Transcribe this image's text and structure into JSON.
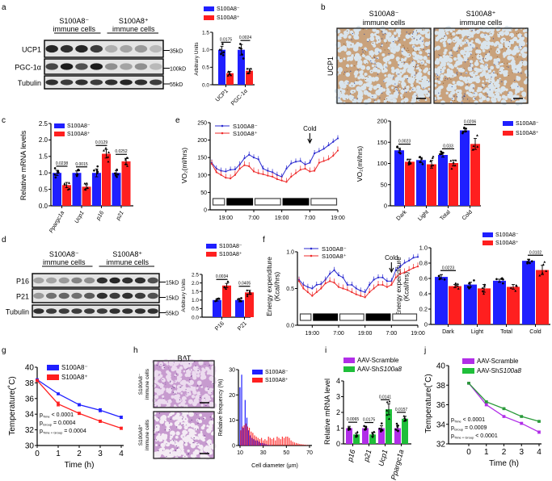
{
  "panel_letters": [
    "a",
    "b",
    "c",
    "d",
    "e",
    "f",
    "g",
    "h",
    "i",
    "j"
  ],
  "legend": {
    "neg": "S100A8⁻",
    "pos": "S100A8⁺",
    "scramble": "AAV-Scramble",
    "sh_prefix": "AAV-Sh",
    "sh_gene": "S100a8"
  },
  "colors": {
    "neg": "#1f1fff",
    "pos": "#ff1f1f",
    "scramble": "#b12ee8",
    "sh": "#1fbf3a",
    "neg_line": "#2a2ad0",
    "pos_line": "#ee2a2a",
    "scramble_line": "#b12ee8",
    "sh_line": "#2a9a3a"
  },
  "blots": {
    "a": {
      "header": [
        "S100A8⁻",
        "immune cells",
        "S100A8⁺",
        "immune cells"
      ],
      "lanes_per_group": 4,
      "rows": [
        {
          "label": "UCP1",
          "kd": "35kD"
        },
        {
          "label": "PGC-1α",
          "kd": "100kD"
        },
        {
          "label": "Tubulin",
          "kd": "55kD"
        }
      ]
    },
    "d": {
      "header": [
        "S100A8⁻",
        "immune cells",
        "S100A8⁺",
        "immune cells"
      ],
      "lanes_per_group": 5,
      "rows": [
        {
          "label": "P16",
          "kd": "15kD"
        },
        {
          "label": "P21",
          "kd": "15kD"
        },
        {
          "label": "Tubulin",
          "kd": "55kD"
        }
      ]
    }
  },
  "histology": {
    "b": {
      "titles": [
        [
          "S100A8⁻",
          "immune cells"
        ],
        [
          "S100A8⁺",
          "immune cells"
        ]
      ],
      "row_label": "UCP1"
    },
    "h": {
      "title": "BAT",
      "row_labels": [
        [
          "S100A8⁻",
          "immune cells"
        ],
        [
          "S100A8⁺",
          "immune cells"
        ]
      ]
    }
  },
  "chart_data": [
    {
      "id": "a_bar",
      "type": "bar",
      "title": "",
      "ylabel": "Arbitrary Units",
      "categories": [
        "UCP1",
        "PGC-1α"
      ],
      "ylim": [
        0,
        1.5
      ],
      "yticks": [
        "0.0",
        "0.5",
        "1.0",
        "1.5"
      ],
      "series": [
        {
          "name": "S100A8⁻",
          "values": [
            1.0,
            1.0
          ],
          "sem": [
            0.1,
            0.15
          ]
        },
        {
          "name": "S100A8⁺",
          "values": [
            0.33,
            0.4
          ],
          "sem": [
            0.05,
            0.06
          ]
        }
      ],
      "pvalues": [
        "0.0175",
        "0.0024"
      ]
    },
    {
      "id": "c_bar",
      "type": "bar",
      "ylabel": "Relative mRNA levels",
      "categories": [
        "Ppargc1a",
        "Ucp1",
        "p16",
        "p21"
      ],
      "ylim": [
        0,
        2.5
      ],
      "yticks": [
        "0.0",
        "0.5",
        "1.0",
        "1.5",
        "2.0",
        "2.5"
      ],
      "series": [
        {
          "name": "S100A8⁻",
          "values": [
            1.0,
            1.0,
            1.0,
            1.0
          ],
          "sem": [
            0.08,
            0.06,
            0.12,
            0.07
          ]
        },
        {
          "name": "S100A8⁺",
          "values": [
            0.63,
            0.58,
            1.58,
            1.35
          ],
          "sem": [
            0.08,
            0.06,
            0.13,
            0.09
          ]
        }
      ],
      "pvalues": [
        "0.0238",
        "0.0015",
        "0.0129",
        "0.0252"
      ]
    },
    {
      "id": "d_bar",
      "type": "bar",
      "ylabel": "Arbitrary Units",
      "categories": [
        "P16",
        "P21"
      ],
      "ylim": [
        0,
        2.5
      ],
      "yticks": [
        "0.0",
        "0.5",
        "1.0",
        "1.5",
        "2.0",
        "2.5"
      ],
      "series": [
        {
          "name": "S100A8⁻",
          "values": [
            1.0,
            1.0
          ],
          "sem": [
            0.06,
            0.1
          ]
        },
        {
          "name": "S100A8⁺",
          "values": [
            1.85,
            1.45
          ],
          "sem": [
            0.12,
            0.12
          ]
        }
      ],
      "pvalues": [
        "0.0034",
        "0.0405"
      ]
    },
    {
      "id": "e_line",
      "type": "line",
      "ylabel": "VO₂(ml/hrs)",
      "ylim": [
        0,
        250
      ],
      "yticks": [
        "0",
        "50",
        "100",
        "150",
        "200",
        "250"
      ],
      "xlim_hours": [
        0,
        54
      ],
      "xticks": [
        {
          "h": 6,
          "label": "19:00"
        },
        {
          "h": 18,
          "label": "7:00"
        },
        {
          "h": 30,
          "label": "19:00"
        },
        {
          "h": 42,
          "label": "7:00"
        },
        {
          "h": 54,
          "label": "19:00"
        }
      ],
      "light_dark": [
        "light",
        "dark",
        "light",
        "dark",
        "light"
      ],
      "annotation": {
        "text": "Cold",
        "h": 42
      },
      "x_step_hours": 2,
      "series": [
        {
          "name": "S100A8⁻",
          "values": [
            135,
            118,
            112,
            110,
            115,
            116,
            130,
            148,
            158,
            150,
            145,
            118,
            112,
            108,
            100,
            95,
            118,
            133,
            138,
            140,
            130,
            135,
            162,
            168,
            175,
            185,
            195,
            205
          ]
        },
        {
          "name": "S100A8⁺",
          "values": [
            132,
            108,
            100,
            92,
            90,
            100,
            118,
            128,
            125,
            110,
            105,
            102,
            98,
            95,
            88,
            84,
            80,
            95,
            105,
            115,
            118,
            110,
            112,
            135,
            140,
            145,
            155,
            170
          ]
        }
      ]
    },
    {
      "id": "e_bar",
      "type": "bar",
      "ylabel": "VO₂(ml/hrs)",
      "categories": [
        "Dark",
        "Light",
        "Total",
        "Cold"
      ],
      "ylim": [
        0,
        200
      ],
      "yticks": [
        "0",
        "50",
        "100",
        "150",
        "200"
      ],
      "series": [
        {
          "name": "S100A8⁻",
          "values": [
            131,
            108,
            120,
            178
          ],
          "sem": [
            5,
            6,
            5,
            4
          ]
        },
        {
          "name": "S100A8⁺",
          "values": [
            104,
            98,
            101,
            146
          ],
          "sem": [
            6,
            9,
            7,
            13
          ]
        }
      ],
      "pvalues": [
        "0.0023",
        null,
        "0.033",
        "0.0206"
      ]
    },
    {
      "id": "f_line",
      "type": "line",
      "ylabel": "Energy expenditure (Kcal/hrs)",
      "ylim": [
        0,
        1.0
      ],
      "yticks": [
        "0.0",
        "0.5",
        "1.0"
      ],
      "xlim_hours": [
        0,
        54
      ],
      "xticks": [
        {
          "h": 6,
          "label": "19:00"
        },
        {
          "h": 18,
          "label": "7:00"
        },
        {
          "h": 30,
          "label": "19:00"
        },
        {
          "h": 42,
          "label": "7:00"
        },
        {
          "h": 54,
          "label": "19:00"
        }
      ],
      "light_dark": [
        "light",
        "dark",
        "light",
        "dark",
        "light"
      ],
      "annotation": {
        "text": "Cold",
        "h": 42
      },
      "x_step_hours": 2,
      "series": [
        {
          "name": "S100A8⁻",
          "values": [
            0.62,
            0.55,
            0.52,
            0.5,
            0.55,
            0.56,
            0.62,
            0.7,
            0.75,
            0.68,
            0.65,
            0.55,
            0.55,
            0.5,
            0.47,
            0.45,
            0.55,
            0.62,
            0.65,
            0.65,
            0.6,
            0.6,
            0.75,
            0.8,
            0.85,
            0.88,
            0.92,
            0.93
          ]
        },
        {
          "name": "S100A8⁺",
          "values": [
            0.6,
            0.5,
            0.45,
            0.4,
            0.45,
            0.5,
            0.57,
            0.6,
            0.58,
            0.52,
            0.5,
            0.48,
            0.45,
            0.42,
            0.4,
            0.38,
            0.45,
            0.5,
            0.55,
            0.55,
            0.52,
            0.55,
            0.65,
            0.7,
            0.72,
            0.75,
            0.78,
            0.8
          ]
        }
      ]
    },
    {
      "id": "f_bar",
      "type": "bar",
      "ylabel": "Energy expenditure (Kcal/hrs)",
      "categories": [
        "Dark",
        "Light",
        "Total",
        "Cold"
      ],
      "ylim": [
        0,
        1.0
      ],
      "yticks": [
        "0",
        "0.2",
        "0.4",
        "0.6",
        "0.8",
        "1.0"
      ],
      "series": [
        {
          "name": "S100A8⁻",
          "values": [
            0.62,
            0.52,
            0.57,
            0.83
          ],
          "sem": [
            0.03,
            0.03,
            0.02,
            0.02
          ]
        },
        {
          "name": "S100A8⁺",
          "values": [
            0.5,
            0.47,
            0.49,
            0.71
          ],
          "sem": [
            0.02,
            0.05,
            0.03,
            0.06
          ]
        }
      ],
      "pvalues": [
        "0.0223",
        null,
        null,
        "0.0102"
      ]
    },
    {
      "id": "g_line",
      "type": "line",
      "ylabel": "Temperature(˚C)",
      "xlabel": "Time (h)",
      "x": [
        0,
        1,
        2,
        3,
        4
      ],
      "ylim": [
        30,
        40
      ],
      "yticks": [
        "30",
        "32",
        "34",
        "36",
        "38",
        "40"
      ],
      "xticks": [
        "0",
        "1",
        "2",
        "3",
        "4"
      ],
      "series": [
        {
          "name": "S100A8⁻",
          "values": [
            38.4,
            36.6,
            35.2,
            34.5,
            33.6
          ],
          "sem": [
            0.1,
            0.1,
            0.15,
            0.2,
            0.15
          ]
        },
        {
          "name": "S100A8⁺",
          "values": [
            38.3,
            35.3,
            34.1,
            33.1,
            32.2
          ],
          "sem": [
            0.1,
            0.25,
            0.15,
            0.15,
            0.15
          ]
        }
      ],
      "stats": [
        {
          "sub": "Time",
          "text": " < 0.0001"
        },
        {
          "sub": "Group",
          "text": " = 0.0004"
        },
        {
          "sub": "Time × Group",
          "text": " = 0.0004"
        }
      ]
    },
    {
      "id": "h_hist",
      "type": "bar",
      "ylabel": "Relative frequency (%)",
      "xlabel": "Cell diameter (μm)",
      "xlim": [
        10,
        70
      ],
      "ylim": [
        0,
        30
      ],
      "yticks": [
        "0",
        "10",
        "20",
        "30"
      ],
      "xticks": [
        "10",
        "30",
        "50",
        "70"
      ],
      "bin_start": 9.5,
      "bin_width": 1.5,
      "series": [
        {
          "name": "S100A8⁻",
          "values": [
            23,
            28,
            7,
            18,
            11,
            6,
            4,
            3,
            2.5,
            2,
            2,
            1.5,
            1,
            1,
            0.8,
            0.5,
            0.3,
            0.2,
            0.1,
            0,
            0,
            0,
            0,
            0,
            0,
            0,
            0,
            0,
            0,
            0,
            0,
            0,
            0,
            0,
            0,
            0,
            0,
            0,
            0,
            0
          ]
        },
        {
          "name": "S100A8⁺",
          "values": [
            6,
            7.5,
            8,
            8.7,
            7.5,
            7,
            5.5,
            5,
            4,
            3.5,
            3,
            2.5,
            3,
            2,
            2.5,
            2,
            3.5,
            3,
            2.5,
            3,
            2,
            3.5,
            3,
            2.5,
            3.5,
            3,
            3.5,
            3.5,
            3,
            2,
            1.5,
            1.2,
            1,
            0.8,
            0.6,
            0.5,
            0.4,
            0.3,
            0.2,
            0.1
          ]
        }
      ]
    },
    {
      "id": "i_bar",
      "type": "bar",
      "ylabel": "Relative mRNA level",
      "categories": [
        "p16",
        "p21",
        "Ucp1",
        "Ppargc1a"
      ],
      "ylim": [
        0,
        4
      ],
      "yticks": [
        "0",
        "1",
        "2",
        "3",
        "4"
      ],
      "series": [
        {
          "name": "AAV-Scramble",
          "values": [
            1.0,
            1.0,
            1.0,
            1.0
          ],
          "sem": [
            0.12,
            0.1,
            0.15,
            0.15
          ]
        },
        {
          "name": "AAV-ShS100a8",
          "values": [
            0.6,
            0.6,
            2.2,
            1.6
          ],
          "sem": [
            0.08,
            0.12,
            0.35,
            0.15
          ]
        }
      ],
      "pvalues": [
        "0.0065",
        "0.0175",
        "0.0141",
        "0.0157"
      ]
    },
    {
      "id": "j_line",
      "type": "line",
      "ylabel": "Temperature(˚C)",
      "xlabel": "Time (h)",
      "x": [
        0,
        1,
        2,
        3,
        4
      ],
      "ylim": [
        32,
        40
      ],
      "yticks": [
        "32",
        "34",
        "36",
        "38",
        "40"
      ],
      "xticks": [
        "0",
        "1",
        "2",
        "3",
        "4"
      ],
      "series": [
        {
          "name": "AAV-Scramble",
          "values": [
            38.2,
            36.0,
            34.8,
            34.1,
            33.2
          ],
          "sem": [
            0.05,
            0.1,
            0.08,
            0.1,
            0.12
          ]
        },
        {
          "name": "AAV-ShS100a8",
          "values": [
            38.2,
            36.3,
            35.6,
            34.8,
            34.3
          ],
          "sem": [
            0.05,
            0.08,
            0.08,
            0.06,
            0.06
          ]
        }
      ],
      "stats": [
        {
          "sub": "Time",
          "text": " < 0.0001"
        },
        {
          "sub": "Group",
          "text": " = 0.0009"
        },
        {
          "sub": "Time × Group",
          "text": " < 0.0001"
        }
      ]
    }
  ]
}
